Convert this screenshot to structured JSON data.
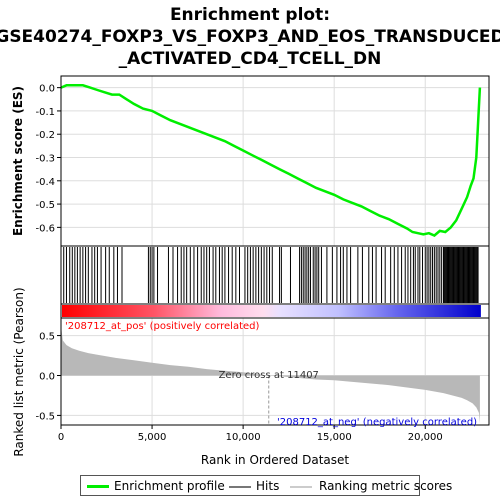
{
  "title_lines": [
    "Enrichment plot:",
    "GSE40274_FOXP3_VS_FOXP3_AND_EOS_TRANSDUCED",
    "_ACTIVATED_CD4_TCELL_DN"
  ],
  "chart_data": [
    {
      "type": "line",
      "panel": "enrichment",
      "ylabel": "Enrichment score (ES)",
      "ylim": [
        -0.68,
        0.05
      ],
      "yticks": [
        0.0,
        -0.1,
        -0.2,
        -0.3,
        -0.4,
        -0.5,
        -0.6
      ],
      "ytick_labels": [
        "0.0",
        "-0.1",
        "-0.2",
        "-0.3",
        "-0.4",
        "-0.5",
        "-0.6"
      ],
      "xlim": [
        0,
        23500
      ],
      "grid": true,
      "series": [
        {
          "name": "Enrichment profile",
          "color": "#00ee00",
          "x": [
            0,
            300,
            700,
            1200,
            1600,
            2000,
            2400,
            2800,
            3200,
            3600,
            4000,
            4500,
            5000,
            5500,
            6000,
            6500,
            7000,
            7500,
            8000,
            8500,
            9000,
            9500,
            10000,
            10500,
            11000,
            11500,
            12000,
            12500,
            13000,
            13500,
            14000,
            14500,
            15000,
            15500,
            16000,
            16500,
            17000,
            17500,
            18000,
            18500,
            19000,
            19300,
            19600,
            19900,
            20200,
            20500,
            20800,
            21100,
            21400,
            21700,
            22000,
            22300,
            22500,
            22650,
            22800,
            22900,
            23000
          ],
          "y": [
            0.0,
            0.01,
            0.01,
            0.01,
            0.0,
            -0.01,
            -0.02,
            -0.03,
            -0.03,
            -0.05,
            -0.07,
            -0.09,
            -0.1,
            -0.12,
            -0.14,
            -0.155,
            -0.17,
            -0.185,
            -0.2,
            -0.215,
            -0.23,
            -0.25,
            -0.27,
            -0.29,
            -0.31,
            -0.33,
            -0.35,
            -0.37,
            -0.39,
            -0.41,
            -0.43,
            -0.445,
            -0.46,
            -0.48,
            -0.495,
            -0.51,
            -0.53,
            -0.55,
            -0.565,
            -0.585,
            -0.605,
            -0.62,
            -0.625,
            -0.63,
            -0.625,
            -0.635,
            -0.615,
            -0.62,
            -0.6,
            -0.57,
            -0.52,
            -0.47,
            -0.42,
            -0.39,
            -0.3,
            -0.15,
            0.0
          ]
        }
      ]
    },
    {
      "type": "scatter",
      "panel": "hits",
      "series": [
        {
          "name": "Hits",
          "color": "#000000",
          "x": [
            150,
            300,
            480,
            620,
            760,
            900,
            1050,
            1200,
            1350,
            1500,
            1700,
            1850,
            2000,
            2200,
            2450,
            2650,
            2900,
            3100,
            3350,
            4800,
            4900,
            5000,
            5100,
            5300,
            5900,
            6150,
            6400,
            6600,
            6750,
            6900,
            7100,
            7300,
            7500,
            7700,
            7850,
            8000,
            8150,
            8350,
            8500,
            8700,
            8850,
            9000,
            9200,
            9400,
            9600,
            9800,
            10100,
            10250,
            10400,
            10550,
            10700,
            10850,
            11000,
            11150,
            11300,
            11450,
            11600,
            12000,
            12100,
            12600,
            13100,
            13200,
            13300,
            13400,
            13500,
            13600,
            13700,
            13850,
            13950,
            14050,
            14150,
            14300,
            14600,
            14900,
            15150,
            15350,
            15500,
            15700,
            15900,
            16300,
            16550,
            16900,
            17100,
            17300,
            17600,
            17800,
            18100,
            18300,
            18500,
            18700,
            18900,
            19050,
            19200,
            19350,
            19450,
            19600,
            19700,
            19850,
            20000,
            20100,
            20200,
            20300,
            20400,
            20500,
            20600,
            20700,
            20800,
            20900,
            21000,
            21050,
            21100,
            21150,
            21200,
            21250,
            21300,
            21350,
            21400,
            21450,
            21500,
            21550,
            21600,
            21650,
            21700,
            21750,
            21800,
            21850,
            21900,
            21950,
            22000,
            22050,
            22100,
            22150,
            22200,
            22250,
            22300,
            22350,
            22400,
            22450,
            22500,
            22550,
            22600,
            22650,
            22700,
            22750,
            22800,
            22850,
            22900
          ]
        }
      ]
    },
    {
      "type": "area",
      "panel": "ranked_metric",
      "ylabel": "Ranked list metric (Pearson)",
      "xlabel": "Rank in Ordered Dataset",
      "ylim": [
        -0.62,
        0.72
      ],
      "yticks": [
        0.5,
        0.0,
        -0.5
      ],
      "ytick_labels": [
        "0.5",
        "0.0",
        "-0.5"
      ],
      "xlim": [
        0,
        23500
      ],
      "xticks": [
        0,
        5000,
        10000,
        15000,
        20000
      ],
      "xtick_labels": [
        "0",
        "5,000",
        "10,000",
        "15,000",
        "20,000"
      ],
      "grid": true,
      "zero_cross": 11407,
      "series": [
        {
          "name": "Ranking metric scores",
          "color": "#b8b8b8",
          "x": [
            0,
            100,
            300,
            600,
            1000,
            1500,
            2000,
            3000,
            4000,
            5000,
            6000,
            7000,
            8000,
            9000,
            10000,
            11000,
            11407,
            12000,
            13000,
            14000,
            15000,
            16000,
            17000,
            18000,
            19000,
            20000,
            20500,
            21000,
            21500,
            22000,
            22300,
            22600,
            22800,
            22950,
            23000
          ],
          "y": [
            0.62,
            0.44,
            0.38,
            0.34,
            0.31,
            0.28,
            0.26,
            0.22,
            0.19,
            0.16,
            0.13,
            0.11,
            0.08,
            0.06,
            0.04,
            0.01,
            0.0,
            -0.01,
            -0.03,
            -0.05,
            -0.06,
            -0.08,
            -0.1,
            -0.12,
            -0.15,
            -0.18,
            -0.2,
            -0.22,
            -0.25,
            -0.28,
            -0.31,
            -0.35,
            -0.4,
            -0.47,
            -0.6
          ]
        }
      ]
    }
  ],
  "annotations": {
    "pos_label": "'208712_at_pos' (positively correlated)",
    "neg_label": "'208712_at_neg' (negatively correlated)",
    "zero_cross_label": "Zero cross at 11407"
  },
  "legend": {
    "items": [
      {
        "label": "Enrichment profile",
        "color": "#00ee00"
      },
      {
        "label": "Hits",
        "color": "#777777"
      },
      {
        "label": "Ranking metric scores",
        "color": "#cccccc"
      }
    ]
  },
  "colors": {
    "pos_text": "#ff0000",
    "neg_text": "#0000dd",
    "heat_red": "#ff0000",
    "heat_blue": "#0000cc"
  }
}
